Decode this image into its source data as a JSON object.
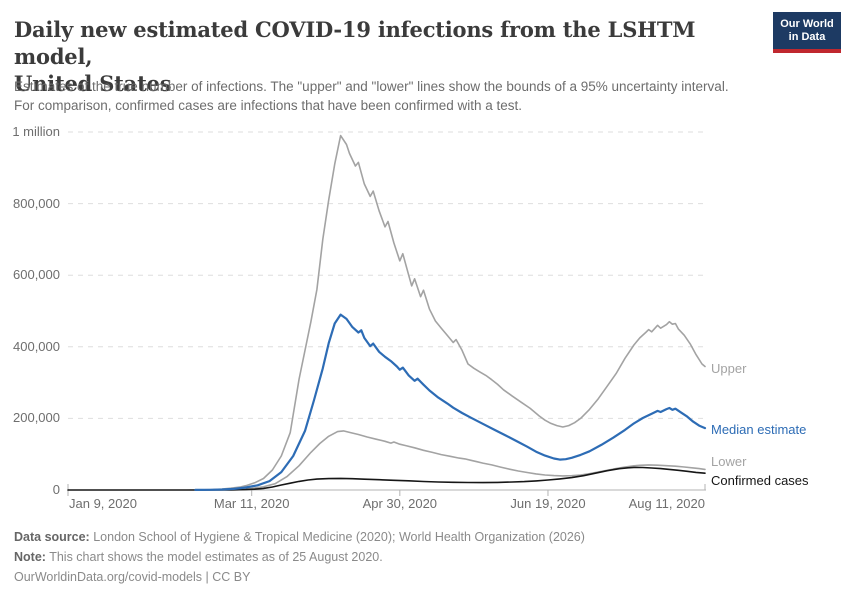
{
  "header": {
    "title_line1": "Daily new estimated COVID-19 infections from the LSHTM model,",
    "title_line2": "United States",
    "subtitle_line1": "Estimates of the true number of infections. The \"upper\" and \"lower\" lines show the bounds of a 95% uncertainty interval.",
    "subtitle_line2": "For comparison, confirmed cases are infections that have been confirmed with a test."
  },
  "logo": {
    "line1": "Our World",
    "line2": "in Data",
    "bg_color": "#1d3a63",
    "bar_color": "#c0282f"
  },
  "footer": {
    "data_source_label": "Data source:",
    "data_source_text": " London School of Hygiene & Tropical Medicine (2020); World Health Organization (2026)",
    "note_label": "Note:",
    "note_text": " This chart shows the model estimates as of 25 August 2020.",
    "link_text": "OurWorldinData.org/covid-models | CC BY"
  },
  "chart_data": {
    "type": "line",
    "title": "Daily new estimated COVID-19 infections from the LSHTM model, United States",
    "x_unit": "days since Jan 9, 2020",
    "x_range": [
      0,
      215
    ],
    "y_range": [
      0,
      1000000
    ],
    "grid": "dashed-horizontal",
    "x_ticks": [
      {
        "label": "Jan 9, 2020",
        "day": 0,
        "align": "left"
      },
      {
        "label": "Mar 11, 2020",
        "day": 62,
        "align": "center"
      },
      {
        "label": "Apr 30, 2020",
        "day": 112,
        "align": "center"
      },
      {
        "label": "Jun 19, 2020",
        "day": 162,
        "align": "center"
      },
      {
        "label": "Aug 11, 2020",
        "day": 215,
        "align": "right"
      }
    ],
    "y_ticks": [
      {
        "value": 0,
        "label": "0"
      },
      {
        "value": 200000,
        "label": "200,000"
      },
      {
        "value": 400000,
        "label": "400,000"
      },
      {
        "value": 600000,
        "label": "600,000"
      },
      {
        "value": 800000,
        "label": "800,000"
      },
      {
        "value": 1000000,
        "label": "1 million"
      }
    ],
    "series": [
      {
        "id": "lower",
        "label": "Lower",
        "color": "#a3a3a3",
        "width": 1.6,
        "points": [
          [
            43,
            100
          ],
          [
            50,
            700
          ],
          [
            55,
            1800
          ],
          [
            58,
            2800
          ],
          [
            62,
            4500
          ],
          [
            66,
            9000
          ],
          [
            70,
            18000
          ],
          [
            74,
            38000
          ],
          [
            78,
            68000
          ],
          [
            82,
            105000
          ],
          [
            85,
            130000
          ],
          [
            88,
            150000
          ],
          [
            91,
            163000
          ],
          [
            93,
            165000
          ],
          [
            95,
            161000
          ],
          [
            98,
            155000
          ],
          [
            101,
            148000
          ],
          [
            104,
            142000
          ],
          [
            107,
            136000
          ],
          [
            109,
            131000
          ],
          [
            110,
            134000
          ],
          [
            112,
            128000
          ],
          [
            114,
            124000
          ],
          [
            117,
            118000
          ],
          [
            120,
            111000
          ],
          [
            123,
            105000
          ],
          [
            126,
            99000
          ],
          [
            129,
            94000
          ],
          [
            132,
            89000
          ],
          [
            134,
            87000
          ],
          [
            136,
            83000
          ],
          [
            138,
            79000
          ],
          [
            140,
            75000
          ],
          [
            143,
            70000
          ],
          [
            146,
            64000
          ],
          [
            149,
            58000
          ],
          [
            152,
            53000
          ],
          [
            155,
            49000
          ],
          [
            158,
            45000
          ],
          [
            161,
            42000
          ],
          [
            164,
            40200
          ],
          [
            167,
            39500
          ],
          [
            170,
            40000
          ],
          [
            173,
            42000
          ],
          [
            176,
            45500
          ],
          [
            180,
            52000
          ],
          [
            184,
            58500
          ],
          [
            188,
            64000
          ],
          [
            191,
            67500
          ],
          [
            193,
            69000
          ],
          [
            196,
            70000
          ],
          [
            199,
            69300
          ],
          [
            202,
            68000
          ],
          [
            205,
            66400
          ],
          [
            208,
            64300
          ],
          [
            211,
            61800
          ],
          [
            213,
            59800
          ],
          [
            215,
            57500
          ]
        ]
      },
      {
        "id": "upper",
        "label": "Upper",
        "color": "#a3a3a3",
        "width": 1.6,
        "points": [
          [
            43,
            300
          ],
          [
            46,
            600
          ],
          [
            49,
            1200
          ],
          [
            52,
            2500
          ],
          [
            55,
            5000
          ],
          [
            58,
            8000
          ],
          [
            60,
            12000
          ],
          [
            63,
            20000
          ],
          [
            66,
            32000
          ],
          [
            69,
            56000
          ],
          [
            72,
            95000
          ],
          [
            75,
            160000
          ],
          [
            78,
            310000
          ],
          [
            80,
            390000
          ],
          [
            82,
            470000
          ],
          [
            84,
            560000
          ],
          [
            86,
            700000
          ],
          [
            88,
            810000
          ],
          [
            90,
            910000
          ],
          [
            92,
            990000
          ],
          [
            94,
            965000
          ],
          [
            95,
            940000
          ],
          [
            97,
            905000
          ],
          [
            98,
            915000
          ],
          [
            100,
            855000
          ],
          [
            102,
            820000
          ],
          [
            103,
            835000
          ],
          [
            105,
            780000
          ],
          [
            107,
            735000
          ],
          [
            108,
            750000
          ],
          [
            110,
            690000
          ],
          [
            112,
            640000
          ],
          [
            113,
            660000
          ],
          [
            115,
            600000
          ],
          [
            116,
            570000
          ],
          [
            117,
            590000
          ],
          [
            119,
            540000
          ],
          [
            120,
            558000
          ],
          [
            122,
            505000
          ],
          [
            124,
            472000
          ],
          [
            126,
            452000
          ],
          [
            128,
            432000
          ],
          [
            130,
            412000
          ],
          [
            131,
            420000
          ],
          [
            133,
            390000
          ],
          [
            135,
            352000
          ],
          [
            137,
            340000
          ],
          [
            139,
            330000
          ],
          [
            141,
            320000
          ],
          [
            143,
            308000
          ],
          [
            145,
            295000
          ],
          [
            147,
            280000
          ],
          [
            150,
            262000
          ],
          [
            153,
            245000
          ],
          [
            156,
            228000
          ],
          [
            159,
            207000
          ],
          [
            161,
            195000
          ],
          [
            163,
            186000
          ],
          [
            165,
            180000
          ],
          [
            167,
            176000
          ],
          [
            169,
            180000
          ],
          [
            171,
            188000
          ],
          [
            173,
            200000
          ],
          [
            176,
            225000
          ],
          [
            179,
            255000
          ],
          [
            182,
            290000
          ],
          [
            185,
            325000
          ],
          [
            188,
            368000
          ],
          [
            191,
            405000
          ],
          [
            193,
            425000
          ],
          [
            195,
            440000
          ],
          [
            196,
            448000
          ],
          [
            197,
            442000
          ],
          [
            199,
            460000
          ],
          [
            200,
            452000
          ],
          [
            202,
            462000
          ],
          [
            203,
            470000
          ],
          [
            204,
            463000
          ],
          [
            205,
            465000
          ],
          [
            206,
            450000
          ],
          [
            208,
            432000
          ],
          [
            210,
            408000
          ],
          [
            212,
            378000
          ],
          [
            214,
            352000
          ],
          [
            215,
            345000
          ]
        ]
      },
      {
        "id": "confirmed",
        "label": "Confirmed cases",
        "color": "#161616",
        "width": 1.6,
        "points": [
          [
            0,
            0
          ],
          [
            40,
            100
          ],
          [
            50,
            200
          ],
          [
            55,
            400
          ],
          [
            58,
            700
          ],
          [
            60,
            1100
          ],
          [
            63,
            2200
          ],
          [
            66,
            4500
          ],
          [
            69,
            8500
          ],
          [
            72,
            14000
          ],
          [
            75,
            19000
          ],
          [
            78,
            24000
          ],
          [
            81,
            28000
          ],
          [
            84,
            30500
          ],
          [
            88,
            31800
          ],
          [
            92,
            32500
          ],
          [
            96,
            31500
          ],
          [
            100,
            30200
          ],
          [
            105,
            28800
          ],
          [
            110,
            27200
          ],
          [
            115,
            25600
          ],
          [
            120,
            23800
          ],
          [
            125,
            22400
          ],
          [
            130,
            21600
          ],
          [
            135,
            21000
          ],
          [
            140,
            20700
          ],
          [
            145,
            21200
          ],
          [
            150,
            22400
          ],
          [
            154,
            23500
          ],
          [
            158,
            25500
          ],
          [
            162,
            28000
          ],
          [
            166,
            31000
          ],
          [
            170,
            34500
          ],
          [
            174,
            40000
          ],
          [
            178,
            47000
          ],
          [
            182,
            54000
          ],
          [
            186,
            59500
          ],
          [
            189,
            62000
          ],
          [
            191,
            63200
          ],
          [
            194,
            62800
          ],
          [
            197,
            61500
          ],
          [
            200,
            59800
          ],
          [
            203,
            57600
          ],
          [
            206,
            55000
          ],
          [
            209,
            52300
          ],
          [
            212,
            49300
          ],
          [
            215,
            47000
          ]
        ]
      },
      {
        "id": "median",
        "label": "Median estimate",
        "color": "#2d6cb5",
        "width": 2.2,
        "points": [
          [
            43,
            200
          ],
          [
            48,
            600
          ],
          [
            52,
            1500
          ],
          [
            56,
            3000
          ],
          [
            60,
            7000
          ],
          [
            64,
            13000
          ],
          [
            68,
            25000
          ],
          [
            72,
            50000
          ],
          [
            76,
            95000
          ],
          [
            80,
            165000
          ],
          [
            83,
            250000
          ],
          [
            86,
            340000
          ],
          [
            88,
            410000
          ],
          [
            90,
            465000
          ],
          [
            92,
            490000
          ],
          [
            94,
            478000
          ],
          [
            96,
            455000
          ],
          [
            98,
            440000
          ],
          [
            99,
            446000
          ],
          [
            100,
            425000
          ],
          [
            102,
            402000
          ],
          [
            103,
            409000
          ],
          [
            105,
            386000
          ],
          [
            107,
            372000
          ],
          [
            109,
            360000
          ],
          [
            111,
            345000
          ],
          [
            112,
            336000
          ],
          [
            113,
            342000
          ],
          [
            115,
            320000
          ],
          [
            117,
            305000
          ],
          [
            118,
            311000
          ],
          [
            120,
            294000
          ],
          [
            122,
            278000
          ],
          [
            125,
            258000
          ],
          [
            128,
            242000
          ],
          [
            130,
            230000
          ],
          [
            133,
            215000
          ],
          [
            136,
            202000
          ],
          [
            140,
            185000
          ],
          [
            144,
            168000
          ],
          [
            148,
            151000
          ],
          [
            152,
            134000
          ],
          [
            155,
            121000
          ],
          [
            158,
            107000
          ],
          [
            161,
            96000
          ],
          [
            164,
            88000
          ],
          [
            166,
            85000
          ],
          [
            168,
            86000
          ],
          [
            170,
            90000
          ],
          [
            173,
            98000
          ],
          [
            176,
            108000
          ],
          [
            180,
            126000
          ],
          [
            184,
            146000
          ],
          [
            188,
            168000
          ],
          [
            191,
            186000
          ],
          [
            194,
            201000
          ],
          [
            197,
            213000
          ],
          [
            199,
            221000
          ],
          [
            200,
            218000
          ],
          [
            202,
            226000
          ],
          [
            203,
            229000
          ],
          [
            204,
            224000
          ],
          [
            205,
            227000
          ],
          [
            207,
            216000
          ],
          [
            209,
            205000
          ],
          [
            211,
            191000
          ],
          [
            213,
            180000
          ],
          [
            215,
            173000
          ]
        ]
      }
    ],
    "legend_position": "right-of-line-end"
  }
}
